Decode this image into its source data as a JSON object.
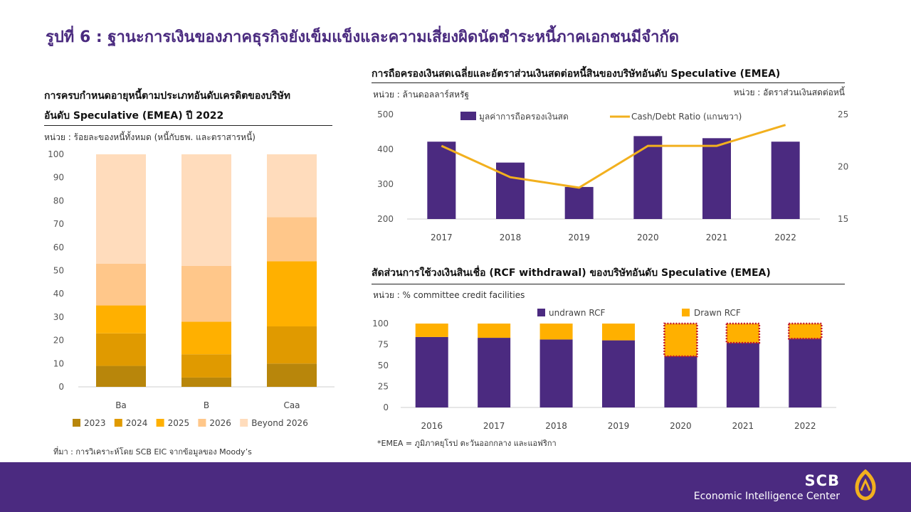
{
  "page": {
    "title": "รูปที่ 6 : ฐานะการเงินของภาคธุรกิจยังเข็มแข็งและความเสี่ยงผิดนัดชำระหนี้ภาคเอกชนมีจำกัด",
    "source": "ที่มา : การวิเคราะห์โดย SCB EIC จากข้อมูลของ Moody’s",
    "footnote": "*EMEA = ภูมิภาคยุโรป ตะวันออกกลาง และแอฟริกา",
    "brand_top": "SCB",
    "brand_bottom": "Economic Intelligence Center",
    "brand_color": "#4b2a80"
  },
  "left": {
    "title_line1": "การครบกำหนดอายุหนี้ตามประเภทอันดับเครดิตของบริษัท",
    "title_line2": "อันดับ Speculative (EMEA) ปี 2022",
    "unit": "หน่วย : ร้อยละของหนี้ทั้งหมด (หนี้กับธพ. และตราสารหนี้)"
  },
  "topright": {
    "title": "การถือครองเงินสดเฉลี่ยและอัตราส่วนเงินสดต่อหนี้สินของบริษัทอันดับ Speculative (EMEA)",
    "unit_left": "หน่วย : ล้านดอลลาร์สหรัฐ",
    "unit_right": "หน่วย : อัตราส่วนเงินสดต่อหนี้"
  },
  "bottomright": {
    "title": "สัดส่วนการใช้วงเงินสินเชื่อ (RCF withdrawal) ของบริษัทอันดับ Speculative (EMEA)",
    "unit": "หน่วย : % committee credit facilities"
  },
  "chart_data": [
    {
      "type": "bar",
      "stacked": true,
      "categories": [
        "Ba",
        "B",
        "Caa"
      ],
      "series": [
        {
          "name": "2023",
          "values": [
            9,
            4,
            10
          ],
          "color": "#b8860b"
        },
        {
          "name": "2024",
          "values": [
            14,
            10,
            16
          ],
          "color": "#e09a00"
        },
        {
          "name": "2025",
          "values": [
            12,
            14,
            28
          ],
          "color": "#ffb000"
        },
        {
          "name": "2026",
          "values": [
            18,
            24,
            19
          ],
          "color": "#ffc78a"
        },
        {
          "name": "Beyond 2026",
          "values": [
            47,
            48,
            27
          ],
          "color": "#ffdcbc"
        }
      ],
      "ylim": [
        0,
        100
      ],
      "yticks": [
        0,
        10,
        20,
        30,
        40,
        50,
        60,
        70,
        80,
        90,
        100
      ],
      "legend": "bottom",
      "grid": false
    },
    {
      "type": "bar",
      "categories": [
        "2017",
        "2018",
        "2019",
        "2020",
        "2021",
        "2022"
      ],
      "series": [
        {
          "name": "มูลค่าการถือครองเงินสด",
          "type": "bar",
          "axis": "left",
          "values": [
            422,
            362,
            292,
            438,
            432,
            422
          ],
          "color": "#4b2a80"
        },
        {
          "name": "Cash/Debt Ratio (แกนขวา)",
          "type": "line",
          "axis": "right",
          "values": [
            22,
            19,
            18,
            22,
            22,
            24
          ],
          "color": "#f2b01e"
        }
      ],
      "ylim": [
        200,
        500
      ],
      "yticks": [
        200,
        300,
        400,
        500
      ],
      "y2lim": [
        15,
        25
      ],
      "y2ticks": [
        15,
        20,
        25
      ],
      "legend": "top",
      "grid": false
    },
    {
      "type": "bar",
      "stacked": true,
      "categories": [
        "2016",
        "2017",
        "2018",
        "2019",
        "2020",
        "2021",
        "2022"
      ],
      "series": [
        {
          "name": "undrawn RCF",
          "values": [
            84,
            83,
            81,
            80,
            61,
            77,
            82
          ],
          "color": "#4b2a80"
        },
        {
          "name": "Drawn RCF",
          "values": [
            16,
            17,
            19,
            20,
            39,
            23,
            18
          ],
          "color": "#ffb000"
        }
      ],
      "highlighted": [
        "2020",
        "2021",
        "2022"
      ],
      "highlight_color": "#c0142b",
      "ylim": [
        0,
        100
      ],
      "yticks": [
        0,
        25,
        50,
        75,
        100
      ],
      "legend": "top",
      "grid": false
    }
  ]
}
